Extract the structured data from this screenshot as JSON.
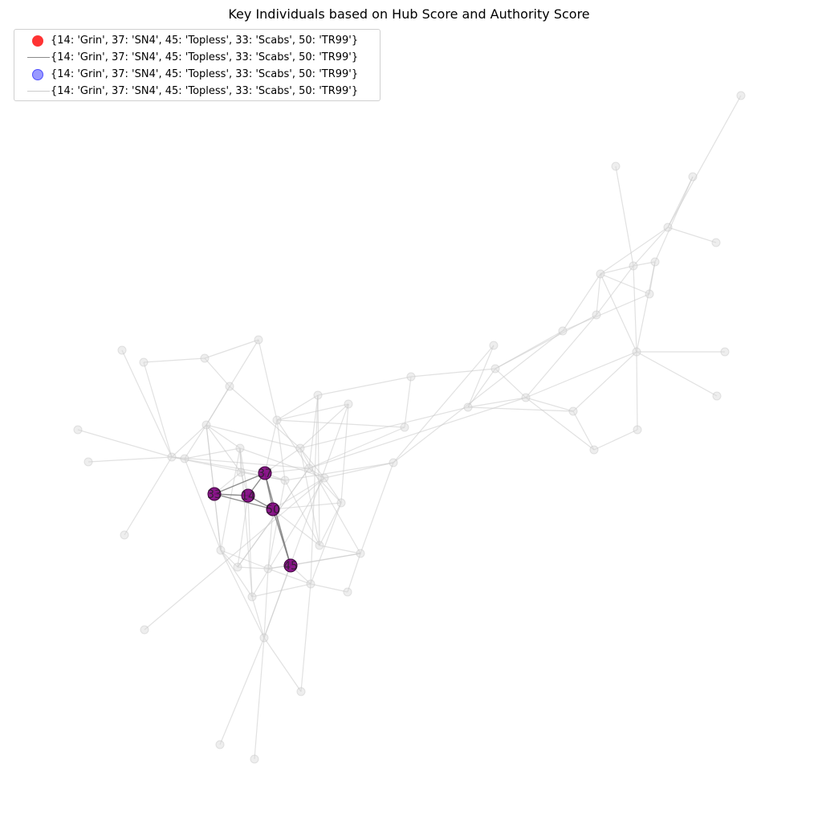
{
  "title": "Key Individuals based on Hub Score and Authority Score",
  "legend": [
    {
      "kind": "marker",
      "label": "{14: 'Grin', 37: 'SN4', 45: 'Topless', 33: 'Scabs', 50: 'TR99'}",
      "color": "#ff0000"
    },
    {
      "kind": "line",
      "label": "{14: 'Grin', 37: 'SN4', 45: 'Topless', 33: 'Scabs', 50: 'TR99'}",
      "color": "#808080"
    },
    {
      "kind": "marker",
      "label": "{14: 'Grin', 37: 'SN4', 45: 'Topless', 33: 'Scabs', 50: 'TR99'}",
      "color": "#0000ff"
    },
    {
      "kind": "line",
      "label": "{14: 'Grin', 37: 'SN4', 45: 'Topless', 33: 'Scabs', 50: 'TR99'}",
      "color": "#c0c0c0"
    }
  ],
  "colors": {
    "key_node_fill": "#800080",
    "background_node": "#d9d9d9",
    "key_edge": "#808080",
    "background_edge": "#c8c8c8"
  },
  "key_nodes": [
    {
      "id": "14",
      "label": "14"
    },
    {
      "id": "37",
      "label": "37"
    },
    {
      "id": "45",
      "label": "45"
    },
    {
      "id": "33",
      "label": "33"
    },
    {
      "id": "50",
      "label": "50"
    }
  ],
  "key_edges": [
    [
      "33",
      "37"
    ],
    [
      "33",
      "14"
    ],
    [
      "33",
      "50"
    ],
    [
      "14",
      "37"
    ],
    [
      "14",
      "50"
    ],
    [
      "37",
      "50"
    ],
    [
      "50",
      "45"
    ],
    [
      "37",
      "45"
    ]
  ]
}
